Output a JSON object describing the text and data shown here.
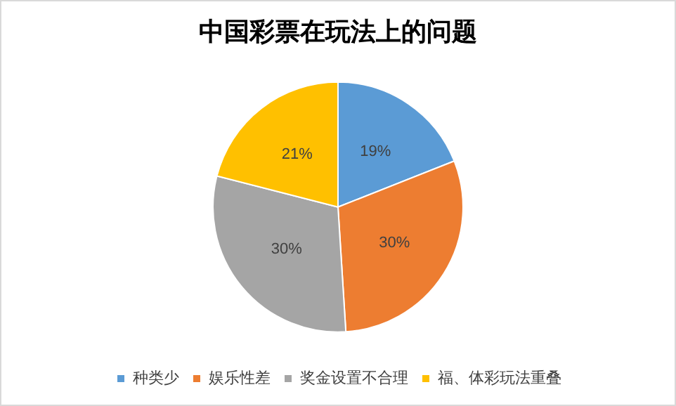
{
  "chart_data": {
    "type": "pie",
    "title": "中国彩票在玩法上的问题",
    "categories": [
      "种类少",
      "娱乐性差",
      "奖金设置不合理",
      "福、体彩玩法重叠"
    ],
    "values": [
      19,
      30,
      30,
      21
    ],
    "value_labels": [
      "19%",
      "30%",
      "30%",
      "21%"
    ],
    "colors": [
      "#5b9bd5",
      "#ed7d31",
      "#a5a5a5",
      "#ffc000"
    ],
    "legend": "bottom"
  }
}
